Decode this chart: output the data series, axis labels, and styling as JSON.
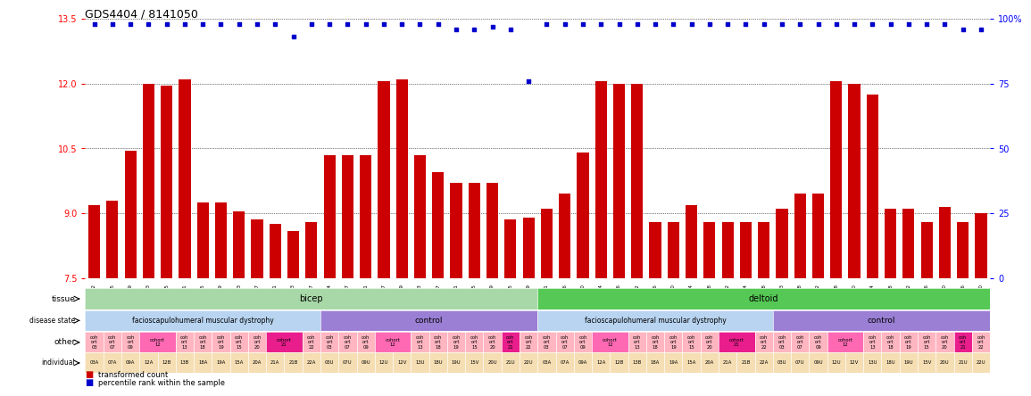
{
  "title": "GDS4404 / 8141050",
  "samples": [
    "GSM892342",
    "GSM892345",
    "GSM892349",
    "GSM892353",
    "GSM892355",
    "GSM892361",
    "GSM892365",
    "GSM892369",
    "GSM892373",
    "GSM892377",
    "GSM892381",
    "GSM892383",
    "GSM892387",
    "GSM892344",
    "GSM892347",
    "GSM892351",
    "GSM892357",
    "GSM892359",
    "GSM892363",
    "GSM892367",
    "GSM892371",
    "GSM892375",
    "GSM892379",
    "GSM892385",
    "GSM892389",
    "GSM892341",
    "GSM892346",
    "GSM892350",
    "GSM892354",
    "GSM892356",
    "GSM892362",
    "GSM892366",
    "GSM892370",
    "GSM892374",
    "GSM892378",
    "GSM892382",
    "GSM892384",
    "GSM892388",
    "GSM892343",
    "GSM892348",
    "GSM892352",
    "GSM892358",
    "GSM892360",
    "GSM892364",
    "GSM892368",
    "GSM892372",
    "GSM892376",
    "GSM892380",
    "GSM892386",
    "GSM892390"
  ],
  "bar_vals": [
    9.2,
    9.3,
    10.45,
    12.0,
    11.95,
    12.1,
    9.25,
    9.25,
    9.05,
    8.85,
    8.75,
    8.6,
    8.8,
    10.35,
    10.35,
    10.35,
    12.05,
    12.1,
    10.35,
    9.95,
    9.7,
    9.7,
    9.7,
    8.85,
    8.9,
    9.1,
    9.45,
    10.4,
    12.05,
    12.0,
    12.0,
    8.8,
    8.8,
    9.2,
    8.8,
    8.8,
    8.8,
    8.8,
    9.1,
    9.45,
    9.45,
    12.05,
    12.0,
    11.75,
    9.1,
    9.1,
    8.8,
    9.15,
    8.8,
    9.0
  ],
  "pct_vals": [
    98,
    98,
    98,
    98,
    98,
    98,
    98,
    98,
    98,
    98,
    98,
    93,
    98,
    98,
    98,
    98,
    98,
    98,
    98,
    98,
    96,
    96,
    97,
    96,
    76,
    98,
    98,
    98,
    98,
    98,
    98,
    98,
    98,
    98,
    98,
    98,
    98,
    98,
    98,
    98,
    98,
    98,
    98,
    98,
    98,
    98,
    98,
    98,
    96,
    96
  ],
  "ylim": [
    7.5,
    13.5
  ],
  "yticks_l": [
    7.5,
    9.0,
    10.5,
    12.0,
    13.5
  ],
  "yticks_r": [
    0,
    25,
    50,
    75,
    100
  ],
  "bar_color": "#cc0000",
  "dot_color": "#0000cc",
  "tissue_bicep_color": "#a8d8a8",
  "tissue_deltoid_color": "#55c855",
  "fmd_color": "#b8d4f0",
  "ctrl_color": "#9b7fd4",
  "pink_light": "#ffb6c1",
  "pink_mid": "#ff69b4",
  "pink_hot": "#e91e8c",
  "ind_color": "#f5deb3",
  "n_fmd": 13,
  "n_ctrl": 12
}
